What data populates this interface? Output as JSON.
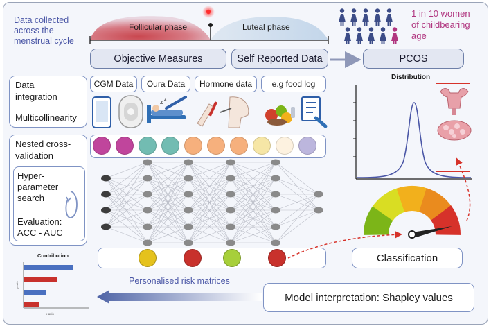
{
  "cycle": {
    "caption_lines": [
      "Data collected",
      "across the",
      "menstrual cycle"
    ],
    "follicular": "Follicular phase",
    "luteal": "Luteal phase"
  },
  "prevalence": {
    "lines": [
      "1 in 10 women",
      "of childbearing",
      "age"
    ]
  },
  "measures": {
    "objective": "Objective Measures",
    "self_reported": "Self Reported Data",
    "outcome": "PCOS"
  },
  "data_sources": [
    "CGM Data",
    "Oura Data",
    "Hormone data",
    "e.g food log"
  ],
  "left_panel": {
    "integration": [
      "Data",
      "integration"
    ],
    "multicollinearity": "Multicollinearity",
    "nested_cv": [
      "Nested cross-",
      "validation"
    ],
    "hyper": [
      "Hyper-",
      "parameter",
      "search"
    ],
    "evaluation": [
      "Evaluation:",
      "ACC - AUC"
    ]
  },
  "distribution": {
    "title": "Distribution"
  },
  "classification": "Classification",
  "interpretation": "Model interpretation: Shapley values",
  "risk_label": "Personalised risk matrices",
  "contribution_chart": {
    "title": "Contribution",
    "xlabel": "x-axis",
    "ylabel": "y-axis"
  },
  "colors": {
    "input_nodes": [
      "#c0459c",
      "#c0459c",
      "#72bcb2",
      "#72bcb2",
      "#f6b07d",
      "#f6b07d",
      "#f6b07d",
      "#f6e6a6",
      "#fdf2e0",
      "#bcb6dd"
    ],
    "output_nodes": [
      "#e5c21d",
      "#c8312c",
      "#a7cf3a",
      "#c8312c"
    ],
    "gauge": [
      "#7cb518",
      "#d9dd23",
      "#f2b01c",
      "#ea8b1e",
      "#d6322a"
    ],
    "accent_pink": "#b0357f",
    "accent_blue": "#4a56a6"
  }
}
